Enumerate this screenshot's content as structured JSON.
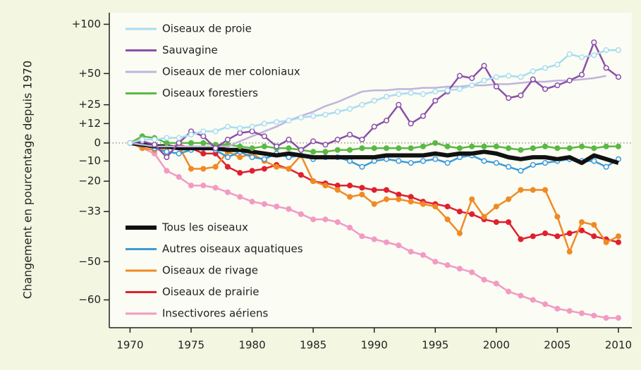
{
  "chart_data": {
    "type": "line",
    "ylabel": "Changement en pourcentage depuis 1970",
    "yscale": "log",
    "xlim": [
      1968.3,
      2011.1
    ],
    "xticks": [
      1970,
      1975,
      1980,
      1985,
      1990,
      1995,
      2000,
      2005,
      2010
    ],
    "ylim": [
      -66,
      114
    ],
    "yticks": [
      {
        "value": 100,
        "label": "+100"
      },
      {
        "value": 50,
        "label": "+50"
      },
      {
        "value": 25,
        "label": "+25"
      },
      {
        "value": 12,
        "label": "+12"
      },
      0,
      {
        "value": -10,
        "label": "−10"
      },
      {
        "value": -20,
        "label": "−20"
      },
      {
        "value": -33,
        "label": "−33"
      },
      {
        "value": -50,
        "label": "−50"
      },
      {
        "value": -60,
        "label": "−60"
      }
    ],
    "x": [
      1970,
      1971,
      1972,
      1973,
      1974,
      1975,
      1976,
      1977,
      1978,
      1979,
      1980,
      1981,
      1982,
      1983,
      1984,
      1985,
      1986,
      1987,
      1988,
      1989,
      1990,
      1991,
      1992,
      1993,
      1994,
      1995,
      1996,
      1997,
      1998,
      1999,
      2000,
      2001,
      2002,
      2003,
      2004,
      2005,
      2006,
      2007,
      2008,
      2009,
      2010
    ],
    "series": [
      {
        "name": "Oiseaux de proie",
        "color": "#a8dcf0",
        "marker": "open",
        "values": [
          0,
          2,
          2,
          3,
          3,
          5,
          7,
          7,
          10,
          9,
          10,
          12,
          13,
          14,
          16,
          17,
          18,
          20,
          22,
          25,
          28,
          31,
          33,
          34,
          33,
          35,
          36,
          37,
          40,
          44,
          47,
          48,
          47,
          52,
          55,
          58,
          68,
          65,
          67,
          72,
          72
        ]
      },
      {
        "name": "Sauvagine",
        "color": "#8a4fa8",
        "marker": "open",
        "values": [
          0,
          1,
          -1,
          -8,
          0,
          7,
          4,
          -3,
          2,
          6,
          7,
          4,
          -2,
          2,
          -4,
          1,
          -1,
          2,
          5,
          2,
          10,
          14,
          25,
          12,
          17,
          28,
          35,
          48,
          46,
          57,
          39,
          30,
          32,
          45,
          37,
          40,
          44,
          49,
          80,
          55,
          47
        ]
      },
      {
        "name": "Oiseaux de mer coloniaux",
        "color": "#c0b4dc",
        "marker": "none",
        "values": [
          0,
          -1,
          -2,
          -2,
          -2,
          -2,
          -2,
          -2,
          -2,
          1,
          4,
          7,
          10,
          14,
          17,
          20,
          24,
          27,
          31,
          35,
          36,
          36,
          37,
          37,
          38,
          38,
          39,
          39,
          40,
          40,
          41,
          41,
          42,
          43,
          43,
          44,
          44,
          45,
          46,
          48,
          null
        ]
      },
      {
        "name": "Oiseaux forestiers",
        "color": "#5ab845",
        "marker": "filled",
        "values": [
          0,
          4,
          3,
          0,
          0,
          0,
          0,
          -1,
          -1,
          -2,
          -3,
          -2,
          -3,
          -3,
          -4,
          -5,
          -5,
          -4,
          -4,
          -3,
          -3,
          -3,
          -3,
          -3,
          -2,
          0,
          -2,
          -3,
          -2,
          -2,
          -2,
          -3,
          -4,
          -3,
          -2,
          -3,
          -3,
          -2,
          -3,
          -2,
          -2
        ]
      },
      {
        "name": "Tous les oiseaux",
        "color": "#111111",
        "marker": "none",
        "values": [
          0,
          -1,
          -2,
          -2,
          -3,
          -3,
          -3,
          -3,
          -4,
          -4,
          -5,
          -6,
          -7,
          -6,
          -7,
          -8,
          -8,
          -8,
          -8,
          -8,
          -8,
          -7,
          -7,
          -7,
          -7,
          -6,
          -7,
          -6,
          -6,
          -5,
          -6,
          -8,
          -9,
          -8,
          -8,
          -9,
          -8,
          -11,
          -7,
          -9,
          -11
        ]
      },
      {
        "name": "Autres oiseaux aquatiques",
        "color": "#3a9ad9",
        "marker": "open",
        "values": [
          0,
          -1,
          -3,
          -5,
          -6,
          -4,
          -3,
          -4,
          -8,
          -5,
          -8,
          -9,
          -6,
          -8,
          -7,
          -9,
          -8,
          -8,
          -10,
          -13,
          -10,
          -9,
          -10,
          -11,
          -10,
          -9,
          -11,
          -8,
          -7,
          -10,
          -11,
          -13,
          -15,
          -12,
          -11,
          -10,
          -9,
          -10,
          -10,
          -13,
          -9
        ]
      },
      {
        "name": "Oiseaux de rivage",
        "color": "#f08a24",
        "marker": "filled",
        "values": [
          0,
          -3,
          -4,
          -3,
          -2,
          -14,
          -14,
          -13,
          -5,
          -8,
          -6,
          -10,
          -13,
          -14,
          -7,
          -20,
          -22,
          -24,
          -27,
          -26,
          -30,
          -28,
          -28,
          -29,
          -30,
          -31,
          -36,
          -41,
          -28,
          -35,
          -31,
          -28,
          -24,
          -24,
          -24,
          -35,
          -47,
          -37,
          -38,
          -44,
          -42
        ]
      },
      {
        "name": "Oiseaux de prairie",
        "color": "#e02030",
        "marker": "filled",
        "values": [
          0,
          1,
          -1,
          -3,
          -1,
          -3,
          -6,
          -6,
          -13,
          -16,
          -15,
          -14,
          -12,
          -14,
          -17,
          -20,
          -21,
          -22,
          -22,
          -23,
          -24,
          -24,
          -26,
          -27,
          -29,
          -30,
          -31,
          -33,
          -34,
          -36,
          -37,
          -37,
          -43,
          -42,
          -41,
          -42,
          -41,
          -40,
          -42,
          -43,
          -44
        ]
      },
      {
        "name": "Insectivores aériens",
        "color": "#f29ac4",
        "marker": "filled",
        "values": [
          0,
          -3,
          -6,
          -15,
          -18,
          -22,
          -22,
          -23,
          -25,
          -27,
          -29,
          -30,
          -31,
          -32,
          -34,
          -36,
          -36,
          -37,
          -39,
          -42,
          -43,
          -44,
          -45,
          -47,
          -48,
          -50,
          -51,
          -52,
          -53,
          -55,
          -56,
          -58,
          -59,
          -60,
          -61,
          -62,
          -62.5,
          -63,
          -63.5,
          -64,
          -64
        ]
      }
    ]
  }
}
